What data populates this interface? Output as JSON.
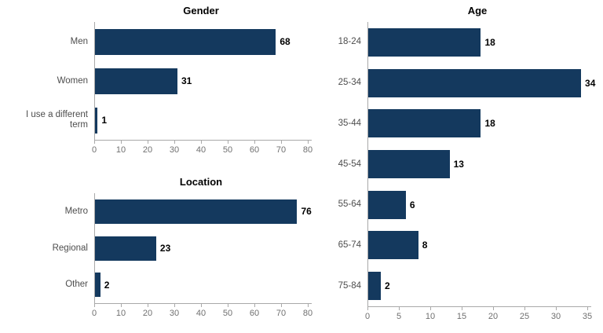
{
  "colors": {
    "bar": "#14395E",
    "axis": "#A9A9A9",
    "tick_label": "#707070",
    "category_label": "#4D4D4D",
    "value_label": "#000000"
  },
  "chart_data": [
    {
      "id": "gender",
      "type": "bar",
      "orientation": "horizontal",
      "title": "Gender",
      "categories": [
        "Men",
        "Women",
        "I use a different term"
      ],
      "values": [
        68,
        31,
        1
      ],
      "xlabel": "",
      "ylabel": "",
      "xlim": [
        0,
        80
      ],
      "xmax": 80,
      "xticks": [
        0,
        10,
        20,
        30,
        40,
        50,
        60,
        70,
        80
      ],
      "grid": false,
      "legend": false,
      "data_labels": true
    },
    {
      "id": "location",
      "type": "bar",
      "orientation": "horizontal",
      "title": "Location",
      "categories": [
        "Metro",
        "Regional",
        "Other"
      ],
      "values": [
        76,
        23,
        2
      ],
      "xlabel": "",
      "ylabel": "",
      "xlim": [
        0,
        80
      ],
      "xmax": 80,
      "xticks": [
        0,
        10,
        20,
        30,
        40,
        50,
        60,
        70,
        80
      ],
      "grid": false,
      "legend": false,
      "data_labels": true
    },
    {
      "id": "age",
      "type": "bar",
      "orientation": "horizontal",
      "title": "Age",
      "categories": [
        "18-24",
        "25-34",
        "35-44",
        "45-54",
        "55-64",
        "65-74",
        "75-84"
      ],
      "values": [
        18,
        34,
        18,
        13,
        6,
        8,
        2
      ],
      "xlabel": "",
      "ylabel": "",
      "xlim": [
        0,
        35
      ],
      "xmax": 35,
      "xticks": [
        0,
        5,
        10,
        15,
        20,
        25,
        30,
        35
      ],
      "grid": false,
      "legend": false,
      "data_labels": true
    }
  ]
}
